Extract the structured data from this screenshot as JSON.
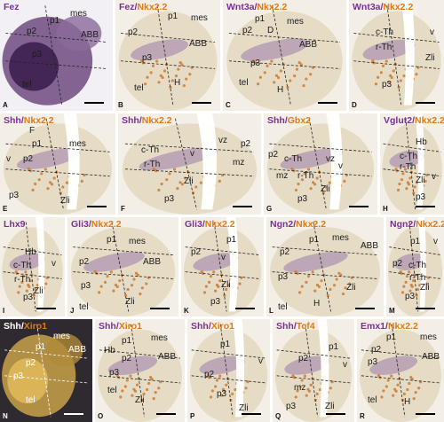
{
  "colors": {
    "purple": "#7a2f96",
    "orange": "#e17a14",
    "white": "#ffffff",
    "background": "#eee9df",
    "label": "#1a1a1a"
  },
  "panels": [
    {
      "id": "A",
      "letter": "A",
      "title": [
        {
          "t": "Fez",
          "c": "purple"
        }
      ],
      "labels": [
        "mes",
        "p1",
        "p2",
        "ABB",
        "p3",
        "tel"
      ],
      "dark": true
    },
    {
      "id": "B",
      "letter": "B",
      "title": [
        {
          "t": "Fez",
          "c": "purple"
        },
        {
          "t": "/",
          "c": "purple"
        },
        {
          "t": "Nkx2.2",
          "c": "orange"
        }
      ],
      "labels": [
        "p1",
        "mes",
        "p2",
        "ABB",
        "p3",
        "tel",
        "H"
      ]
    },
    {
      "id": "C",
      "letter": "C",
      "title": [
        {
          "t": "Wnt3a",
          "c": "purple"
        },
        {
          "t": "/",
          "c": "purple"
        },
        {
          "t": "Nkx2.2",
          "c": "orange"
        }
      ],
      "labels": [
        "p1",
        "mes",
        "p2",
        "D",
        "ABB",
        "p3",
        "tel",
        "H"
      ]
    },
    {
      "id": "D",
      "letter": "D",
      "title": [
        {
          "t": "Wnt3a",
          "c": "purple"
        },
        {
          "t": "/",
          "c": "purple"
        },
        {
          "t": "Nkx2.2",
          "c": "orange"
        }
      ],
      "labels": [
        "c-Th",
        "v",
        "r-Th",
        "Zli",
        "p3"
      ]
    },
    {
      "id": "E",
      "letter": "E",
      "title": [
        {
          "t": "Shh",
          "c": "purple"
        },
        {
          "t": "/",
          "c": "purple"
        },
        {
          "t": "Nkx2.2",
          "c": "orange"
        }
      ],
      "labels": [
        "F",
        "p1",
        "mes",
        "v",
        "p2",
        "p3",
        "Zli"
      ]
    },
    {
      "id": "F",
      "letter": "F",
      "title": [
        {
          "t": "Shh",
          "c": "purple"
        },
        {
          "t": "/",
          "c": "purple"
        },
        {
          "t": "Nkx2.2",
          "c": "orange"
        }
      ],
      "labels": [
        "vz",
        "p2",
        "c-Th",
        "v",
        "mz",
        "r-Th",
        "Zli",
        "p3"
      ]
    },
    {
      "id": "G",
      "letter": "G",
      "title": [
        {
          "t": "Shh",
          "c": "purple"
        },
        {
          "t": "/",
          "c": "purple"
        },
        {
          "t": "Gbx2",
          "c": "orange"
        }
      ],
      "labels": [
        "p2",
        "c-Th",
        "vz",
        "mz",
        "r-Th",
        "v",
        "Zli",
        "p3"
      ]
    },
    {
      "id": "H",
      "letter": "H",
      "title": [
        {
          "t": "Vglut2",
          "c": "purple"
        },
        {
          "t": "/",
          "c": "purple"
        },
        {
          "t": "Nkx2.2",
          "c": "orange"
        }
      ],
      "labels": [
        "Hb",
        "c-Th",
        "r-Th",
        "Zli",
        "v",
        "p3"
      ]
    },
    {
      "id": "I",
      "letter": "I",
      "title": [
        {
          "t": "Lhx9",
          "c": "purple"
        }
      ],
      "labels": [
        "Hb",
        "c-Th",
        "v",
        "r-Th",
        "Zli",
        "p3"
      ]
    },
    {
      "id": "J",
      "letter": "J",
      "title": [
        {
          "t": "Gli3",
          "c": "purple"
        },
        {
          "t": "/",
          "c": "purple"
        },
        {
          "t": "Nkx2.2",
          "c": "orange"
        }
      ],
      "labels": [
        "p1",
        "mes",
        "p2",
        "ABB",
        "p3",
        "tel",
        "Zli"
      ]
    },
    {
      "id": "K",
      "letter": "K",
      "title": [
        {
          "t": "Gli3",
          "c": "purple"
        },
        {
          "t": "/",
          "c": "purple"
        },
        {
          "t": "Nkx2.2",
          "c": "orange"
        }
      ],
      "labels": [
        "p1",
        "p2",
        "v",
        "Zli",
        "p3"
      ]
    },
    {
      "id": "L",
      "letter": "L",
      "title": [
        {
          "t": "Ngn2",
          "c": "purple"
        },
        {
          "t": "/",
          "c": "purple"
        },
        {
          "t": "Nkx2.2",
          "c": "orange"
        }
      ],
      "labels": [
        "p1",
        "mes",
        "p2",
        "ABB",
        "p3",
        "Zli",
        "tel",
        "H"
      ]
    },
    {
      "id": "M",
      "letter": "M",
      "title": [
        {
          "t": "Ngn2",
          "c": "purple"
        },
        {
          "t": "/",
          "c": "purple"
        },
        {
          "t": "Nkx2.2",
          "c": "orange"
        }
      ],
      "labels": [
        "p1",
        "v",
        "p2",
        "c-Th",
        "r-Th",
        "Zli",
        "p3"
      ]
    },
    {
      "id": "N",
      "letter": "N",
      "title": [
        {
          "t": "Shh",
          "c": "white"
        },
        {
          "t": "/",
          "c": "white"
        },
        {
          "t": "Xiro1",
          "c": "orange"
        }
      ],
      "labels": [
        "mes",
        "p1",
        "ABB",
        "p2",
        "p3",
        "tel"
      ],
      "dark": true
    },
    {
      "id": "O",
      "letter": "O",
      "title": [
        {
          "t": "Shh",
          "c": "purple"
        },
        {
          "t": "/",
          "c": "purple"
        },
        {
          "t": "Xiro1",
          "c": "orange"
        }
      ],
      "labels": [
        "Hb",
        "p1",
        "mes",
        "p2",
        "ABB",
        "p3",
        "tel",
        "Zli"
      ]
    },
    {
      "id": "P",
      "letter": "P",
      "title": [
        {
          "t": "Shh",
          "c": "purple"
        },
        {
          "t": "/",
          "c": "purple"
        },
        {
          "t": "Xiro1",
          "c": "orange"
        }
      ],
      "labels": [
        "p1",
        "v",
        "p2",
        "p3",
        "Zli"
      ]
    },
    {
      "id": "Q",
      "letter": "Q",
      "title": [
        {
          "t": "Shh",
          "c": "purple"
        },
        {
          "t": "/",
          "c": "purple"
        },
        {
          "t": "Tcf4",
          "c": "orange"
        }
      ],
      "labels": [
        "p1",
        "p2",
        "v",
        "mz",
        "p3",
        "Zli"
      ]
    },
    {
      "id": "R",
      "letter": "R",
      "title": [
        {
          "t": "Emx1",
          "c": "purple"
        },
        {
          "t": "/",
          "c": "purple"
        },
        {
          "t": "Nkx2.2",
          "c": "orange"
        }
      ],
      "labels": [
        "p1",
        "mes",
        "p2",
        "ABB",
        "p3",
        "tel",
        "H"
      ]
    }
  ]
}
